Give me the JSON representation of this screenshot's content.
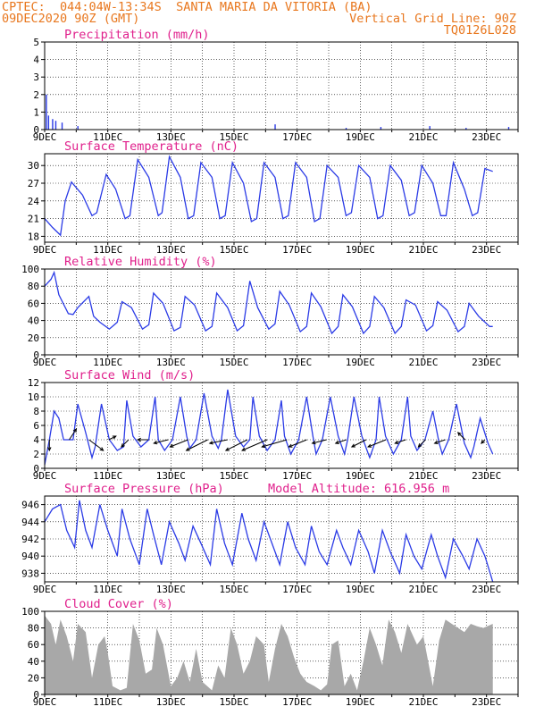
{
  "header": {
    "line1_left": "CPTEC:  044:04W-13:34S  SANTA MARIA DA VITORIA (BA)",
    "line2_left": "09DEC2020 90Z (GMT)",
    "line2_right": "Vertical Grid Line: 90Z",
    "line3_right": "TQ0126L028"
  },
  "x_tick_labels": [
    "9DEC",
    "11DEC",
    "13DEC",
    "15DEC",
    "17DEC",
    "19DEC",
    "21DEC",
    "23DEC"
  ],
  "colors": {
    "header": "#e8771e",
    "panel_title": "#e0208c",
    "series": "#2b3be6",
    "cloud_fill": "#a8a8a8"
  },
  "chart_data": [
    {
      "type": "bar",
      "title": "Precipitation (mm/h)",
      "x_unit": "days since 9DEC",
      "ylim": [
        0,
        5
      ],
      "yticks": [
        0,
        1,
        2,
        3,
        4,
        5
      ],
      "x": [
        0.05,
        0.12,
        0.25,
        0.35,
        0.55,
        1.05,
        7.3,
        9.55,
        10.65,
        12.2,
        13.35,
        14.7
      ],
      "values": [
        2.0,
        0.8,
        0.6,
        0.5,
        0.4,
        0.2,
        0.3,
        0.1,
        0.15,
        0.2,
        0.1,
        0.15
      ]
    },
    {
      "type": "line",
      "title": "Surface Temperature (nC)",
      "ylim": [
        17,
        32
      ],
      "yticks": [
        18,
        21,
        24,
        27,
        30
      ],
      "x": [
        0,
        0.25,
        0.5,
        0.65,
        0.85,
        1.2,
        1.5,
        1.65,
        1.95,
        2.25,
        2.55,
        2.7,
        2.95,
        3.3,
        3.6,
        3.72,
        3.95,
        4.3,
        4.55,
        4.72,
        4.95,
        5.3,
        5.55,
        5.72,
        5.95,
        6.3,
        6.55,
        6.72,
        6.95,
        7.3,
        7.55,
        7.72,
        7.95,
        8.3,
        8.55,
        8.72,
        8.95,
        9.3,
        9.55,
        9.72,
        9.95,
        10.3,
        10.55,
        10.72,
        10.95,
        11.3,
        11.55,
        11.72,
        11.95,
        12.3,
        12.55,
        12.72,
        12.95,
        13.3,
        13.55,
        13.72,
        13.95,
        14.2
      ],
      "values": [
        21,
        19.5,
        18.2,
        24,
        27.2,
        25,
        21.5,
        22,
        28.5,
        26,
        21,
        21.5,
        31,
        28,
        21.5,
        22,
        31.5,
        28,
        21,
        21.5,
        30.5,
        28,
        21,
        21.5,
        30.5,
        27,
        20.5,
        21,
        30.5,
        28,
        21,
        21.5,
        30.5,
        28,
        20.5,
        21,
        30,
        28,
        21.5,
        22,
        30,
        28,
        21,
        21.5,
        30,
        27.5,
        21.5,
        22,
        30,
        27,
        21.5,
        21.5,
        30.5,
        26,
        21.5,
        22,
        29.5,
        29
      ]
    },
    {
      "type": "line",
      "title": "Relative Humidity (%)",
      "ylim": [
        0,
        100
      ],
      "yticks": [
        0,
        20,
        40,
        60,
        80,
        100
      ],
      "x": [
        0,
        0.2,
        0.3,
        0.45,
        0.75,
        0.9,
        1.05,
        1.4,
        1.55,
        1.75,
        2.05,
        2.3,
        2.45,
        2.75,
        3.1,
        3.3,
        3.45,
        3.75,
        4.1,
        4.3,
        4.45,
        4.75,
        5.1,
        5.3,
        5.45,
        5.8,
        6.1,
        6.3,
        6.5,
        6.75,
        7.1,
        7.3,
        7.45,
        7.75,
        8.1,
        8.3,
        8.45,
        8.75,
        9.1,
        9.3,
        9.45,
        9.75,
        10.1,
        10.3,
        10.45,
        10.75,
        11.1,
        11.3,
        11.45,
        11.75,
        12.1,
        12.3,
        12.45,
        12.75,
        13.1,
        13.3,
        13.45,
        13.75,
        14.1,
        14.2
      ],
      "values": [
        80,
        88,
        96,
        70,
        48,
        47,
        55,
        68,
        45,
        38,
        30,
        38,
        62,
        55,
        30,
        35,
        72,
        60,
        28,
        32,
        68,
        58,
        28,
        33,
        72,
        55,
        28,
        34,
        86,
        55,
        30,
        36,
        74,
        58,
        27,
        33,
        72,
        56,
        25,
        33,
        70,
        56,
        25,
        33,
        68,
        55,
        25,
        33,
        64,
        58,
        28,
        34,
        62,
        52,
        27,
        33,
        60,
        45,
        33,
        33
      ]
    },
    {
      "type": "line",
      "title": "Surface Wind (m/s)",
      "ylim": [
        0,
        12
      ],
      "yticks": [
        0,
        2,
        4,
        6,
        8,
        10,
        12
      ],
      "x": [
        0,
        0.15,
        0.3,
        0.45,
        0.6,
        0.9,
        1.05,
        1.3,
        1.5,
        1.6,
        1.8,
        2.05,
        2.3,
        2.5,
        2.6,
        2.8,
        3.05,
        3.3,
        3.5,
        3.6,
        3.8,
        4.05,
        4.3,
        4.5,
        4.6,
        4.8,
        5.05,
        5.3,
        5.5,
        5.6,
        5.8,
        6.05,
        6.3,
        6.5,
        6.6,
        6.8,
        7.05,
        7.3,
        7.5,
        7.6,
        7.8,
        8.05,
        8.3,
        8.5,
        8.6,
        8.8,
        9.05,
        9.3,
        9.5,
        9.6,
        9.8,
        10.05,
        10.3,
        10.5,
        10.6,
        10.8,
        11.05,
        11.3,
        11.5,
        11.6,
        11.8,
        12.05,
        12.3,
        12.5,
        12.6,
        12.8,
        13.05,
        13.3,
        13.5,
        13.6,
        13.8,
        14.05,
        14.2
      ],
      "values": [
        0.5,
        4,
        8,
        7,
        4,
        4,
        9,
        5,
        1.5,
        3,
        9,
        4,
        2.5,
        3,
        9.5,
        4.5,
        3,
        4,
        10,
        4,
        2.5,
        4,
        10,
        4.5,
        2.8,
        4,
        10.5,
        4.5,
        2.8,
        4,
        11,
        4.5,
        3,
        4,
        10,
        4.5,
        2.5,
        4,
        9.5,
        4.5,
        2,
        4,
        10,
        4.5,
        2,
        4,
        10,
        4.5,
        2,
        4,
        10,
        4.5,
        1.5,
        4,
        10,
        4.5,
        2,
        4,
        10,
        4.5,
        2.5,
        4,
        8,
        3.5,
        2,
        4,
        9,
        3.5,
        1.5,
        3,
        7,
        3.5,
        2
      ],
      "wind_barbs_u_v": [
        [
          0,
          -3
        ],
        [
          2,
          3
        ],
        [
          4,
          -3
        ],
        [
          2,
          1
        ],
        [
          -2,
          -2
        ],
        [
          -3,
          0
        ],
        [
          -4,
          -1
        ],
        [
          -5,
          -2
        ],
        [
          -6,
          -3
        ],
        [
          -5,
          -1
        ],
        [
          -6,
          -3
        ],
        [
          -7,
          -3
        ],
        [
          -7,
          -2
        ],
        [
          -5,
          -2
        ],
        [
          -4,
          -1
        ],
        [
          -3,
          -1
        ],
        [
          -4,
          -2
        ],
        [
          -5,
          -2
        ],
        [
          -3,
          -1
        ],
        [
          -2,
          -2
        ],
        [
          -3,
          -1
        ],
        [
          -2,
          2
        ],
        [
          -1,
          -1
        ]
      ]
    },
    {
      "type": "line",
      "title": "Surface Pressure (hPa)",
      "subtitle": "Model Altitude: 616.956 m",
      "ylim": [
        937,
        947
      ],
      "yticks": [
        938,
        940,
        942,
        944,
        946
      ],
      "x": [
        0,
        0.25,
        0.5,
        0.7,
        0.95,
        1.1,
        1.3,
        1.5,
        1.75,
        2.0,
        2.3,
        2.45,
        2.7,
        3.0,
        3.25,
        3.45,
        3.7,
        3.95,
        4.25,
        4.45,
        4.7,
        4.95,
        5.25,
        5.45,
        5.7,
        5.95,
        6.25,
        6.45,
        6.7,
        6.95,
        7.25,
        7.45,
        7.7,
        7.95,
        8.25,
        8.45,
        8.7,
        8.95,
        9.25,
        9.45,
        9.7,
        9.95,
        10.25,
        10.45,
        10.7,
        10.95,
        11.25,
        11.45,
        11.7,
        11.95,
        12.25,
        12.45,
        12.7,
        12.95,
        13.25,
        13.45,
        13.7,
        13.95,
        14.2
      ],
      "values": [
        944,
        945.5,
        946,
        943,
        941,
        946.5,
        943,
        941,
        946,
        943,
        940,
        945.5,
        942,
        939,
        945.5,
        942.5,
        939,
        944,
        941.5,
        939.5,
        943.5,
        941.5,
        939,
        945.5,
        941.5,
        939,
        945,
        942,
        939.5,
        944,
        941,
        939,
        944,
        941,
        939,
        943.5,
        940.5,
        939,
        943,
        941,
        939,
        943,
        940.5,
        938,
        943,
        940.5,
        938,
        942.5,
        940,
        938.5,
        942.5,
        940,
        937.5,
        942,
        940,
        938.5,
        942,
        940,
        937
      ]
    },
    {
      "type": "area",
      "title": "Cloud Cover (%)",
      "ylim": [
        0,
        100
      ],
      "yticks": [
        0,
        20,
        40,
        60,
        80,
        100
      ],
      "x": [
        0,
        0.2,
        0.35,
        0.5,
        0.7,
        0.9,
        1.05,
        1.3,
        1.5,
        1.7,
        1.9,
        2.0,
        2.15,
        2.4,
        2.6,
        2.8,
        3.0,
        3.2,
        3.4,
        3.55,
        3.75,
        4.0,
        4.2,
        4.4,
        4.6,
        4.8,
        5.0,
        5.3,
        5.5,
        5.7,
        5.9,
        6.1,
        6.3,
        6.5,
        6.7,
        6.95,
        7.1,
        7.3,
        7.5,
        7.7,
        7.9,
        8.1,
        8.3,
        8.55,
        8.75,
        8.95,
        9.1,
        9.3,
        9.5,
        9.7,
        9.9,
        10.1,
        10.3,
        10.5,
        10.7,
        10.9,
        11.1,
        11.3,
        11.5,
        11.8,
        12.0,
        12.3,
        12.5,
        12.7,
        12.9,
        13.1,
        13.3,
        13.5,
        13.7,
        13.9,
        14.2
      ],
      "values": [
        95,
        85,
        60,
        90,
        70,
        40,
        85,
        75,
        20,
        60,
        70,
        50,
        10,
        5,
        8,
        85,
        65,
        25,
        30,
        80,
        60,
        10,
        20,
        40,
        15,
        55,
        15,
        5,
        35,
        20,
        80,
        60,
        25,
        40,
        70,
        60,
        15,
        55,
        85,
        70,
        45,
        25,
        15,
        10,
        5,
        12,
        60,
        65,
        10,
        25,
        5,
        40,
        80,
        60,
        35,
        90,
        75,
        50,
        85,
        60,
        70,
        10,
        65,
        90,
        85,
        80,
        75,
        85,
        82,
        80,
        85
      ]
    }
  ]
}
